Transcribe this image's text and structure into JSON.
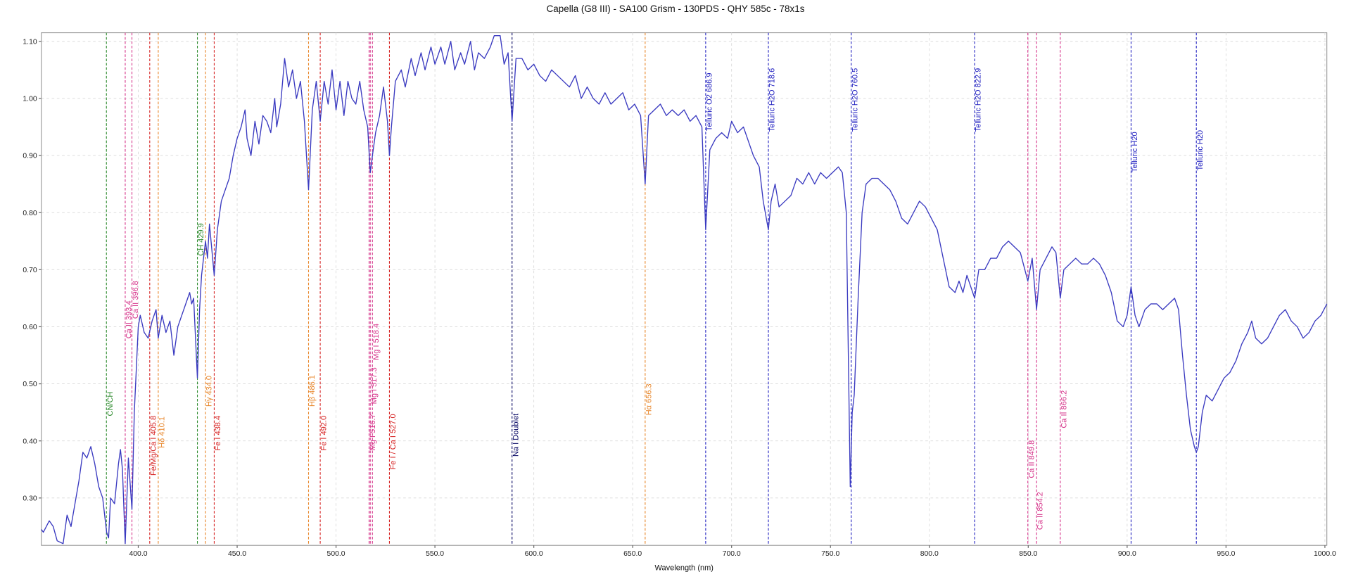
{
  "chart_data": {
    "type": "line",
    "title": "Capella (G8 III) - SA100 Grism - 130PDS - QHY 585c - 78x1s",
    "x_label": "Wavelength (nm)",
    "color": "#3a3ac0",
    "grid": true,
    "xlim": [
      351,
      1001
    ],
    "ylim": [
      0.217,
      1.115
    ],
    "xticks": [
      {
        "value": 400,
        "label": "400.0"
      },
      {
        "value": 450,
        "label": "450.0"
      },
      {
        "value": 500,
        "label": "500.0"
      },
      {
        "value": 550,
        "label": "550.0"
      },
      {
        "value": 600,
        "label": "600.0"
      },
      {
        "value": 650,
        "label": "650.0"
      },
      {
        "value": 700,
        "label": "700.0"
      },
      {
        "value": 750,
        "label": "750.0"
      },
      {
        "value": 800,
        "label": "800.0"
      },
      {
        "value": 850,
        "label": "850.0"
      },
      {
        "value": 900,
        "label": "900.0"
      },
      {
        "value": 950,
        "label": "950.0"
      },
      {
        "value": 1000,
        "label": "1000.0"
      }
    ],
    "yticks": [
      {
        "value": 0.3,
        "label": "0.30"
      },
      {
        "value": 0.4,
        "label": "0.40"
      },
      {
        "value": 0.5,
        "label": "0.50"
      },
      {
        "value": 0.6,
        "label": "0.60"
      },
      {
        "value": 0.7,
        "label": "0.70"
      },
      {
        "value": 0.8,
        "label": "0.80"
      },
      {
        "value": 0.9,
        "label": "0.90"
      },
      {
        "value": 1.0,
        "label": "1.00"
      },
      {
        "value": 1.1,
        "label": "1.10"
      }
    ],
    "x": [
      351,
      352,
      355,
      357,
      359,
      362,
      364,
      366,
      368,
      370,
      372,
      374,
      376,
      378,
      380,
      382,
      384,
      385,
      386,
      388,
      390,
      391,
      392,
      393.4,
      395,
      396.8,
      398,
      400,
      401,
      403,
      405,
      407,
      409,
      410.1,
      412,
      414,
      416,
      418,
      420,
      422,
      424,
      426,
      427,
      428,
      429.9,
      431,
      432,
      434,
      435,
      436,
      438.4,
      440,
      442,
      444,
      446,
      448,
      450,
      452,
      454,
      455,
      457,
      459,
      461,
      463,
      465,
      467,
      469,
      470,
      472,
      474,
      476,
      478,
      480,
      482,
      484,
      486.1,
      488,
      490,
      492,
      494,
      496,
      498,
      500,
      502,
      504,
      506,
      508,
      510,
      512,
      514,
      516,
      517.3,
      518.4,
      520,
      522,
      524,
      526,
      527,
      528,
      530,
      533,
      535,
      538,
      540,
      543,
      545,
      548,
      550,
      553,
      555,
      558,
      560,
      563,
      565,
      568,
      570,
      572,
      575,
      578,
      580,
      583,
      585,
      587,
      589,
      591,
      594,
      597,
      600,
      603,
      606,
      609,
      612,
      615,
      618,
      621,
      624,
      627,
      630,
      633,
      636,
      639,
      642,
      645,
      648,
      651,
      654,
      656.3,
      658,
      661,
      664,
      667,
      670,
      673,
      676,
      679,
      682,
      685,
      686.9,
      689,
      692,
      695,
      698,
      700,
      703,
      706,
      708,
      711,
      714,
      716,
      718.6,
      720,
      722,
      724,
      727,
      730,
      733,
      736,
      739,
      742,
      745,
      748,
      751,
      754,
      756,
      758,
      760,
      761,
      762,
      764,
      766,
      768,
      771,
      774,
      777,
      780,
      783,
      786,
      789,
      792,
      795,
      798,
      801,
      804,
      807,
      810,
      813,
      815,
      817,
      819,
      822.9,
      825,
      828,
      831,
      834,
      837,
      840,
      843,
      846,
      849.8,
      852,
      854.2,
      856,
      859,
      862,
      864,
      866.2,
      868,
      871,
      874,
      877,
      880,
      883,
      886,
      889,
      892,
      895,
      898,
      900,
      902,
      904,
      906,
      909,
      912,
      915,
      918,
      921,
      924,
      926,
      928,
      930,
      932,
      934,
      935,
      936,
      938,
      940,
      943,
      946,
      949,
      952,
      955,
      958,
      961,
      963,
      965,
      968,
      971,
      974,
      977,
      980,
      983,
      986,
      989,
      992,
      995,
      998,
      1001
    ],
    "values": [
      0.245,
      0.24,
      0.26,
      0.25,
      0.225,
      0.22,
      0.27,
      0.25,
      0.29,
      0.33,
      0.38,
      0.37,
      0.39,
      0.36,
      0.32,
      0.3,
      0.24,
      0.23,
      0.3,
      0.29,
      0.36,
      0.385,
      0.35,
      0.22,
      0.37,
      0.28,
      0.45,
      0.6,
      0.62,
      0.59,
      0.58,
      0.61,
      0.63,
      0.58,
      0.62,
      0.59,
      0.61,
      0.55,
      0.6,
      0.62,
      0.64,
      0.66,
      0.64,
      0.65,
      0.51,
      0.63,
      0.69,
      0.75,
      0.72,
      0.78,
      0.69,
      0.77,
      0.82,
      0.84,
      0.86,
      0.9,
      0.93,
      0.95,
      0.98,
      0.93,
      0.9,
      0.96,
      0.92,
      0.97,
      0.96,
      0.94,
      1.0,
      0.95,
      0.99,
      1.07,
      1.02,
      1.05,
      1.0,
      1.03,
      0.96,
      0.84,
      0.98,
      1.03,
      0.96,
      1.03,
      0.99,
      1.05,
      0.98,
      1.03,
      0.97,
      1.03,
      1.0,
      0.99,
      1.03,
      0.98,
      0.95,
      0.87,
      0.9,
      0.94,
      0.97,
      1.02,
      0.96,
      0.9,
      0.95,
      1.03,
      1.05,
      1.02,
      1.07,
      1.04,
      1.08,
      1.05,
      1.09,
      1.06,
      1.09,
      1.06,
      1.1,
      1.05,
      1.08,
      1.06,
      1.1,
      1.05,
      1.08,
      1.07,
      1.09,
      1.11,
      1.11,
      1.06,
      1.08,
      0.96,
      1.07,
      1.07,
      1.05,
      1.06,
      1.04,
      1.03,
      1.05,
      1.04,
      1.03,
      1.02,
      1.04,
      1.0,
      1.02,
      1.0,
      0.99,
      1.01,
      0.99,
      1.0,
      1.01,
      0.98,
      0.99,
      0.97,
      0.85,
      0.97,
      0.98,
      0.99,
      0.97,
      0.98,
      0.97,
      0.98,
      0.96,
      0.97,
      0.95,
      0.77,
      0.91,
      0.93,
      0.94,
      0.93,
      0.96,
      0.94,
      0.95,
      0.93,
      0.9,
      0.88,
      0.82,
      0.77,
      0.82,
      0.85,
      0.81,
      0.82,
      0.83,
      0.86,
      0.85,
      0.87,
      0.85,
      0.87,
      0.86,
      0.87,
      0.88,
      0.87,
      0.8,
      0.32,
      0.45,
      0.48,
      0.65,
      0.8,
      0.85,
      0.86,
      0.86,
      0.85,
      0.84,
      0.82,
      0.79,
      0.78,
      0.8,
      0.82,
      0.81,
      0.79,
      0.77,
      0.72,
      0.67,
      0.66,
      0.68,
      0.66,
      0.69,
      0.65,
      0.7,
      0.7,
      0.72,
      0.72,
      0.74,
      0.75,
      0.74,
      0.73,
      0.68,
      0.72,
      0.63,
      0.7,
      0.72,
      0.74,
      0.73,
      0.65,
      0.7,
      0.71,
      0.72,
      0.71,
      0.71,
      0.72,
      0.71,
      0.69,
      0.66,
      0.61,
      0.6,
      0.62,
      0.67,
      0.62,
      0.6,
      0.63,
      0.64,
      0.64,
      0.63,
      0.64,
      0.65,
      0.63,
      0.55,
      0.48,
      0.42,
      0.39,
      0.38,
      0.39,
      0.45,
      0.48,
      0.47,
      0.49,
      0.51,
      0.52,
      0.54,
      0.57,
      0.59,
      0.61,
      0.58,
      0.57,
      0.58,
      0.6,
      0.62,
      0.63,
      0.61,
      0.6,
      0.58,
      0.59,
      0.61,
      0.62,
      0.64
    ],
    "annotations": [
      {
        "x": 383.9,
        "label": "CN/CH",
        "color": "#2e8b2e"
      },
      {
        "x": 393.4,
        "label": "Ca II 393.4",
        "color": "#d6338a"
      },
      {
        "x": 396.8,
        "label": "Ca II 396.8",
        "color": "#d6338a"
      },
      {
        "x": 405.8,
        "label": "Fe/Mg/Ca I 405.8",
        "color": "#d62020"
      },
      {
        "x": 410.1,
        "label": "Hδ 410.1",
        "color": "#e8862a"
      },
      {
        "x": 429.9,
        "label": "CH 429.9",
        "color": "#2e8b2e"
      },
      {
        "x": 434.0,
        "label": "Hγ 434.0",
        "color": "#e8862a"
      },
      {
        "x": 438.4,
        "label": "Fe I 438.4",
        "color": "#d62020"
      },
      {
        "x": 486.1,
        "label": "Hβ 486.1",
        "color": "#e8862a"
      },
      {
        "x": 492.0,
        "label": "Fe I 492.0",
        "color": "#d62020"
      },
      {
        "x": 516.7,
        "label": "Mg I 516.7",
        "color": "#d6338a"
      },
      {
        "x": 517.3,
        "label": "Mg I 517.3",
        "color": "#d6338a"
      },
      {
        "x": 518.4,
        "label": "Mg I 518.4",
        "color": "#d6338a"
      },
      {
        "x": 527.0,
        "label": "Fe I / Ca I 527.0",
        "color": "#d62020"
      },
      {
        "x": 589.0,
        "label": "Na I Doublet",
        "color": "#000060"
      },
      {
        "x": 656.3,
        "label": "Hα 656.3",
        "color": "#e8862a"
      },
      {
        "x": 686.9,
        "label": "Telluric O2 686.9",
        "color": "#2020c0"
      },
      {
        "x": 718.6,
        "label": "Telluric H2O 718.6",
        "color": "#2020c0"
      },
      {
        "x": 760.5,
        "label": "Telluric H2O 760.5",
        "color": "#2020c0"
      },
      {
        "x": 822.9,
        "label": "Telluric H2O 822.9",
        "color": "#2020c0"
      },
      {
        "x": 849.8,
        "label": "Ca II 849.8",
        "color": "#d6338a"
      },
      {
        "x": 854.2,
        "label": "Ca II 854.2",
        "color": "#d6338a"
      },
      {
        "x": 866.2,
        "label": "Ca II 866.2",
        "color": "#d6338a"
      },
      {
        "x": 902.0,
        "label": "Telluric H20",
        "color": "#2020c0"
      },
      {
        "x": 935.0,
        "label": "Telluric H20",
        "color": "#2020c0"
      }
    ]
  }
}
